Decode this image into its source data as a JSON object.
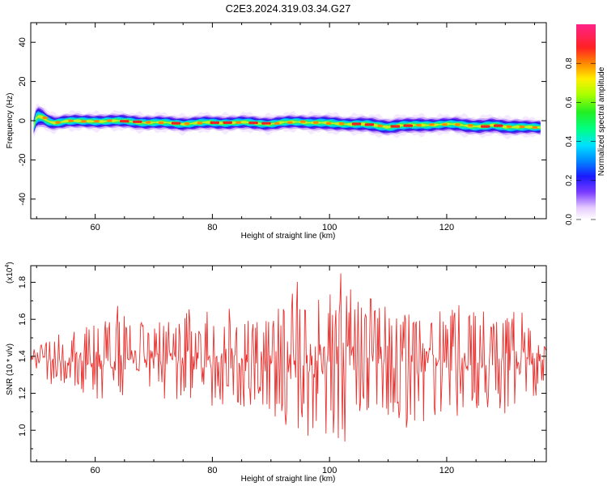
{
  "title": "C2E3.2024.319.03.34.G27",
  "chart_data": [
    {
      "type": "heatmap",
      "xlabel": "Height of straight line (km)",
      "ylabel": "Frequency (Hz)",
      "xlim": [
        49,
        137
      ],
      "ylim": [
        -50,
        50
      ],
      "x_ticks": [
        60,
        80,
        100,
        120
      ],
      "y_ticks": [
        40,
        20,
        0,
        -20,
        -40
      ],
      "colorbar": {
        "label": "Normalized spectral amplitude",
        "range": [
          0.0,
          1.0
        ],
        "ticks": [
          "0.0",
          "0.2",
          "0.4",
          "0.6",
          "0.8"
        ]
      },
      "ridge": {
        "height_km": [
          49.5,
          50,
          51,
          52,
          53,
          55,
          58,
          62,
          66,
          70,
          75,
          80,
          85,
          90,
          95,
          100,
          103,
          106,
          108,
          110,
          112,
          114,
          116,
          118,
          120,
          122,
          124,
          126,
          128,
          130,
          132,
          134,
          136
        ],
        "frequency_hz": [
          -3,
          2,
          1.5,
          -0.5,
          -1,
          0,
          -0.5,
          0,
          -0.5,
          -1,
          -1.5,
          -1,
          -1,
          -1.5,
          -0.5,
          -1.5,
          -1.5,
          -2,
          -2.5,
          -3,
          -2.5,
          -2.5,
          -2,
          -2,
          -2,
          -2,
          -2.5,
          -3,
          -2.5,
          -3,
          -3,
          -3.5,
          -3.5
        ],
        "bandwidth_hz": [
          6,
          7,
          6,
          5,
          4.5,
          4.5,
          4.5,
          4.5,
          4.5,
          4.5,
          4.5,
          4.5,
          4.5,
          4.5,
          4.5,
          5,
          4.5,
          5,
          5,
          5,
          5,
          5,
          5,
          4.5,
          4.5,
          5,
          5,
          5,
          5,
          5,
          5,
          4.5,
          4.5
        ]
      }
    },
    {
      "type": "line",
      "xlabel": "Height of straight line (km)",
      "ylabel": "SNR (10 * v/v)",
      "y_multiplier": "(x10",
      "y_multiplier_exp": "4",
      "y_multiplier_close": ")",
      "xlim": [
        49,
        137
      ],
      "ylim": [
        0.83,
        1.89
      ],
      "x_ticks": [
        60,
        80,
        100,
        120
      ],
      "y_ticks": [
        "1.0",
        "1.2",
        "1.4",
        "1.6",
        "1.8"
      ],
      "line_color": "#e8322f",
      "series": [
        {
          "x": [
            49,
            50,
            51,
            52,
            53,
            54,
            55,
            56,
            57,
            58,
            59,
            60,
            61,
            62,
            63,
            64,
            65,
            66,
            67,
            68,
            69,
            70,
            71,
            72,
            73,
            74,
            75,
            76,
            77,
            78,
            79,
            80,
            81,
            82,
            83,
            84,
            85,
            86,
            87,
            88,
            89,
            90,
            91,
            92,
            93,
            94,
            95,
            96,
            97,
            98,
            99,
            100,
            101,
            102,
            103,
            104,
            105,
            106,
            107,
            108,
            109,
            110,
            111,
            112,
            113,
            114,
            115,
            116,
            117,
            118,
            119,
            120,
            121,
            122,
            123,
            124,
            125,
            126,
            127,
            128,
            129,
            130,
            131,
            132,
            133,
            134,
            135,
            136,
            137
          ],
          "y_max": [
            1.46,
            1.42,
            1.48,
            1.5,
            1.55,
            1.52,
            1.5,
            1.52,
            1.55,
            1.6,
            1.58,
            1.58,
            1.6,
            1.62,
            1.64,
            1.68,
            1.65,
            1.6,
            1.62,
            1.64,
            1.6,
            1.6,
            1.62,
            1.64,
            1.6,
            1.58,
            1.64,
            1.66,
            1.62,
            1.62,
            1.65,
            1.65,
            1.63,
            1.65,
            1.7,
            1.62,
            1.65,
            1.64,
            1.6,
            1.62,
            1.62,
            1.66,
            1.68,
            1.72,
            1.86,
            1.85,
            1.86,
            1.7,
            1.75,
            1.82,
            1.8,
            1.78,
            1.68,
            1.88,
            1.72,
            1.84,
            1.75,
            1.62,
            1.72,
            1.68,
            1.7,
            1.66,
            1.6,
            1.62,
            1.68,
            1.7,
            1.72,
            1.68,
            1.66,
            1.6,
            1.65,
            1.68,
            1.7,
            1.74,
            1.72,
            1.68,
            1.64,
            1.68,
            1.7,
            1.66,
            1.62,
            1.6,
            1.62,
            1.84,
            1.62,
            1.58,
            1.5,
            1.48,
            1.45
          ],
          "y_min": [
            1.28,
            1.3,
            1.25,
            1.22,
            1.26,
            1.22,
            1.25,
            1.22,
            1.2,
            1.18,
            1.22,
            1.18,
            1.15,
            1.18,
            1.2,
            1.15,
            1.18,
            1.18,
            1.16,
            1.14,
            1.18,
            1.15,
            1.18,
            1.14,
            1.15,
            1.17,
            1.15,
            1.12,
            1.15,
            1.18,
            1.14,
            1.13,
            1.15,
            1.12,
            1.14,
            1.16,
            1.12,
            1.14,
            1.1,
            1.15,
            1.12,
            1.1,
            1.05,
            1.0,
            0.95,
            1.02,
            0.95,
            0.96,
            0.88,
            1.05,
            0.98,
            0.9,
            1.0,
            0.83,
            0.92,
            0.96,
            1.0,
            1.05,
            1.0,
            1.02,
            0.98,
            1.05,
            1.08,
            1.04,
            1.0,
            0.95,
            1.0,
            0.94,
            1.05,
            1.05,
            1.1,
            1.08,
            1.06,
            1.08,
            1.1,
            1.12,
            1.1,
            1.08,
            1.12,
            1.15,
            1.1,
            1.08,
            1.05,
            1.08,
            1.1,
            1.15,
            1.18,
            1.2,
            1.22
          ]
        }
      ]
    }
  ]
}
